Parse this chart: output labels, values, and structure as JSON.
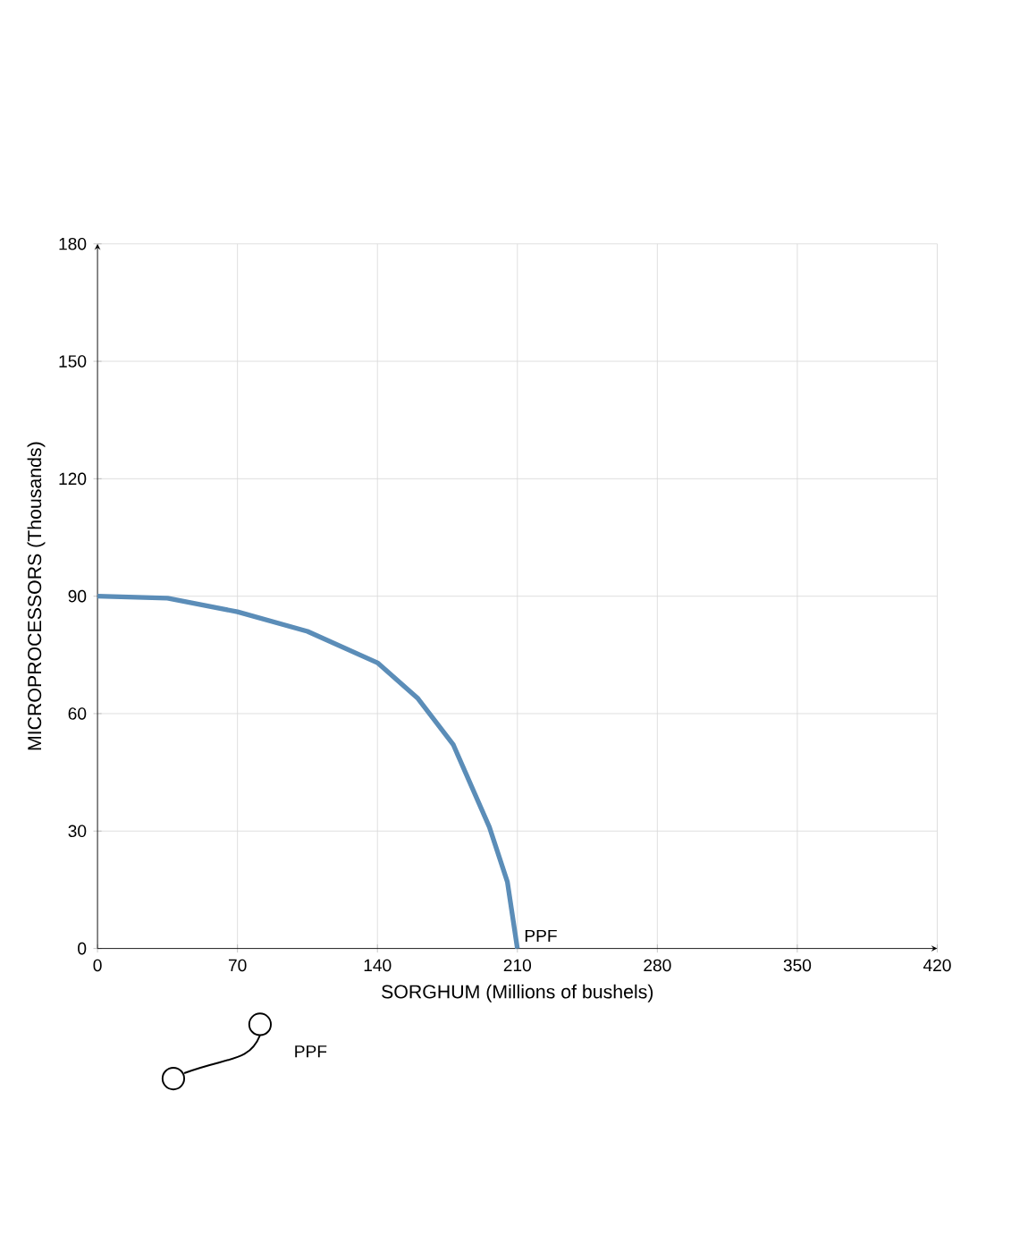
{
  "chart_data": {
    "type": "line",
    "xlabel": "SORGHUM (Millions of bushels)",
    "ylabel": "MICROPROCESSORS (Thousands)",
    "x": [
      0,
      35,
      70,
      105,
      140,
      160,
      178,
      196,
      205,
      210
    ],
    "series": [
      {
        "name": "PPF",
        "color": "#5b8db8",
        "values": [
          90,
          89.5,
          86,
          81,
          73,
          64,
          52,
          31,
          17,
          0
        ]
      }
    ],
    "xlim": [
      0,
      420
    ],
    "xticks": [
      0,
      70,
      140,
      210,
      280,
      350,
      420
    ],
    "ylim": [
      0,
      180
    ],
    "yticks": [
      0,
      30,
      60,
      90,
      120,
      150,
      180
    ],
    "grid": true,
    "marker": "none",
    "line_style": "solid",
    "annotations": [
      "PPF"
    ]
  }
}
